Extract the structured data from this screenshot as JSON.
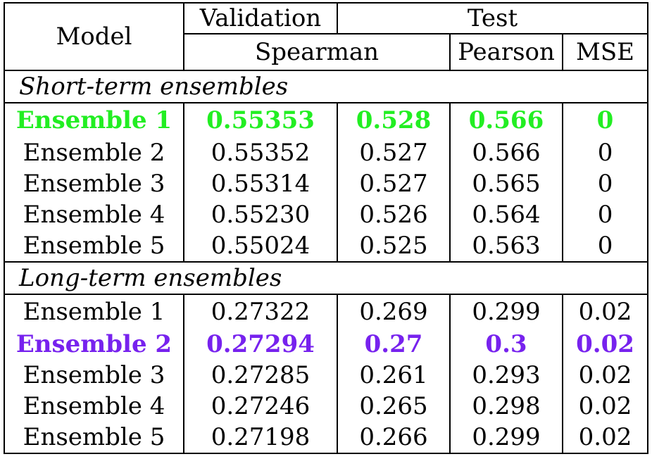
{
  "colors": {
    "short_best": "#22ee22",
    "long_best": "#7722ee",
    "text": "#000000",
    "border": "#000000"
  },
  "header": {
    "model": "Model",
    "validation": "Validation",
    "test": "Test",
    "spearman": "Spearman",
    "pearson": "Pearson",
    "mse": "MSE"
  },
  "sections": [
    {
      "title": "Short-term ensembles",
      "highlight_color": "#22ee22",
      "rows": [
        {
          "model": "Ensemble 1",
          "val_spearman": "0.55353",
          "test_spearman": "0.528",
          "pearson": "0.566",
          "mse": "0",
          "best": true
        },
        {
          "model": "Ensemble 2",
          "val_spearman": "0.55352",
          "test_spearman": "0.527",
          "pearson": "0.566",
          "mse": "0",
          "best": false
        },
        {
          "model": "Ensemble 3",
          "val_spearman": "0.55314",
          "test_spearman": "0.527",
          "pearson": "0.565",
          "mse": "0",
          "best": false
        },
        {
          "model": "Ensemble 4",
          "val_spearman": "0.55230",
          "test_spearman": "0.526",
          "pearson": "0.564",
          "mse": "0",
          "best": false
        },
        {
          "model": "Ensemble 5",
          "val_spearman": "0.55024",
          "test_spearman": "0.525",
          "pearson": "0.563",
          "mse": "0",
          "best": false
        }
      ]
    },
    {
      "title": "Long-term ensembles",
      "highlight_color": "#7722ee",
      "rows": [
        {
          "model": "Ensemble 1",
          "val_spearman": "0.27322",
          "test_spearman": "0.269",
          "pearson": "0.299",
          "mse": "0.02",
          "best": false
        },
        {
          "model": "Ensemble 2",
          "val_spearman": "0.27294",
          "test_spearman": "0.27",
          "pearson": "0.3",
          "mse": "0.02",
          "best": true
        },
        {
          "model": "Ensemble 3",
          "val_spearman": "0.27285",
          "test_spearman": "0.261",
          "pearson": "0.293",
          "mse": "0.02",
          "best": false
        },
        {
          "model": "Ensemble 4",
          "val_spearman": "0.27246",
          "test_spearman": "0.265",
          "pearson": "0.298",
          "mse": "0.02",
          "best": false
        },
        {
          "model": "Ensemble 5",
          "val_spearman": "0.27198",
          "test_spearman": "0.266",
          "pearson": "0.299",
          "mse": "0.02",
          "best": false
        }
      ]
    }
  ]
}
